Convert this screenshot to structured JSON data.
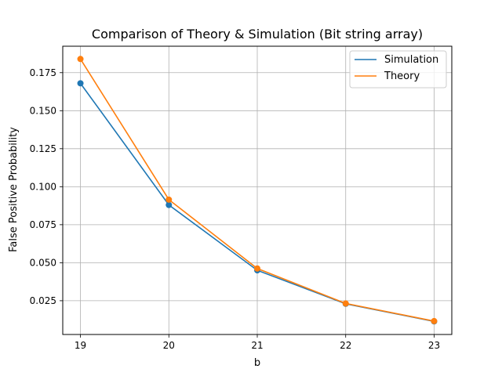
{
  "chart_data": {
    "type": "line",
    "title": "Comparison of Theory & Simulation (Bit string array)",
    "xlabel": "b",
    "ylabel": "False Positive Probability",
    "x": [
      19,
      20,
      21,
      22,
      23
    ],
    "xlim": [
      18.8,
      23.2
    ],
    "ylim": [
      0.0028,
      0.1924
    ],
    "xticks": [
      19,
      20,
      21,
      22,
      23
    ],
    "xtick_labels": [
      "19",
      "20",
      "21",
      "22",
      "23"
    ],
    "yticks": [
      0.025,
      0.05,
      0.075,
      0.1,
      0.125,
      0.15,
      0.175
    ],
    "ytick_labels": [
      "0.025",
      "0.050",
      "0.075",
      "0.100",
      "0.125",
      "0.150",
      "0.175"
    ],
    "grid": true,
    "legend_position": "top-right",
    "series": [
      {
        "name": "Simulation",
        "color": "#1f77b4",
        "values": [
          0.168,
          0.088,
          0.045,
          0.023,
          0.0114
        ]
      },
      {
        "name": "Theory",
        "color": "#ff7f0e",
        "values": [
          0.184,
          0.0915,
          0.0462,
          0.0232,
          0.0116
        ]
      }
    ]
  }
}
